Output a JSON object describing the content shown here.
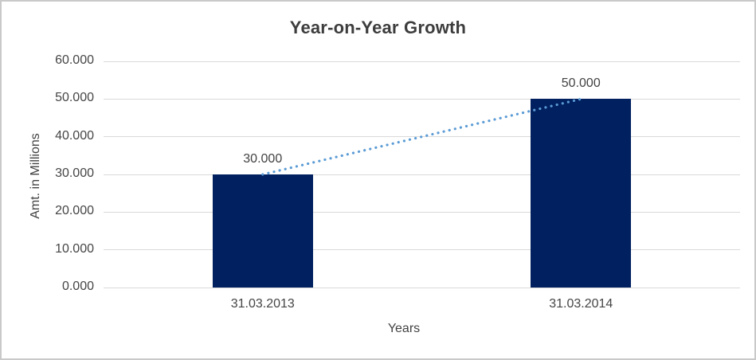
{
  "chart_data": {
    "type": "bar",
    "title": "Year-on-Year Growth",
    "xlabel": "Years",
    "ylabel": "Amt. in Millions",
    "categories": [
      "31.03.2013",
      "31.03.2014"
    ],
    "values": [
      30,
      50
    ],
    "data_labels": [
      "30.000",
      "50.000"
    ],
    "yticks": [
      {
        "value": 0,
        "label": "0.000"
      },
      {
        "value": 10,
        "label": "10.000"
      },
      {
        "value": 20,
        "label": "20.000"
      },
      {
        "value": 30,
        "label": "30.000"
      },
      {
        "value": 40,
        "label": "40.000"
      },
      {
        "value": 50,
        "label": "50.000"
      },
      {
        "value": 60,
        "label": "60.000"
      }
    ],
    "ylim": [
      0,
      60
    ],
    "grid": true,
    "legend": "none",
    "trendline": {
      "style": "dotted",
      "points_xy": [
        [
          0,
          30
        ],
        [
          1,
          50
        ]
      ]
    },
    "colors": {
      "bar": "#002060",
      "trendline": "#5B9BD5",
      "gridline": "#d9d9d9",
      "title_text": "#3d3d3d",
      "axis_text": "#454545",
      "frame_border": "#c9c9c9",
      "background": "#ffffff"
    }
  }
}
